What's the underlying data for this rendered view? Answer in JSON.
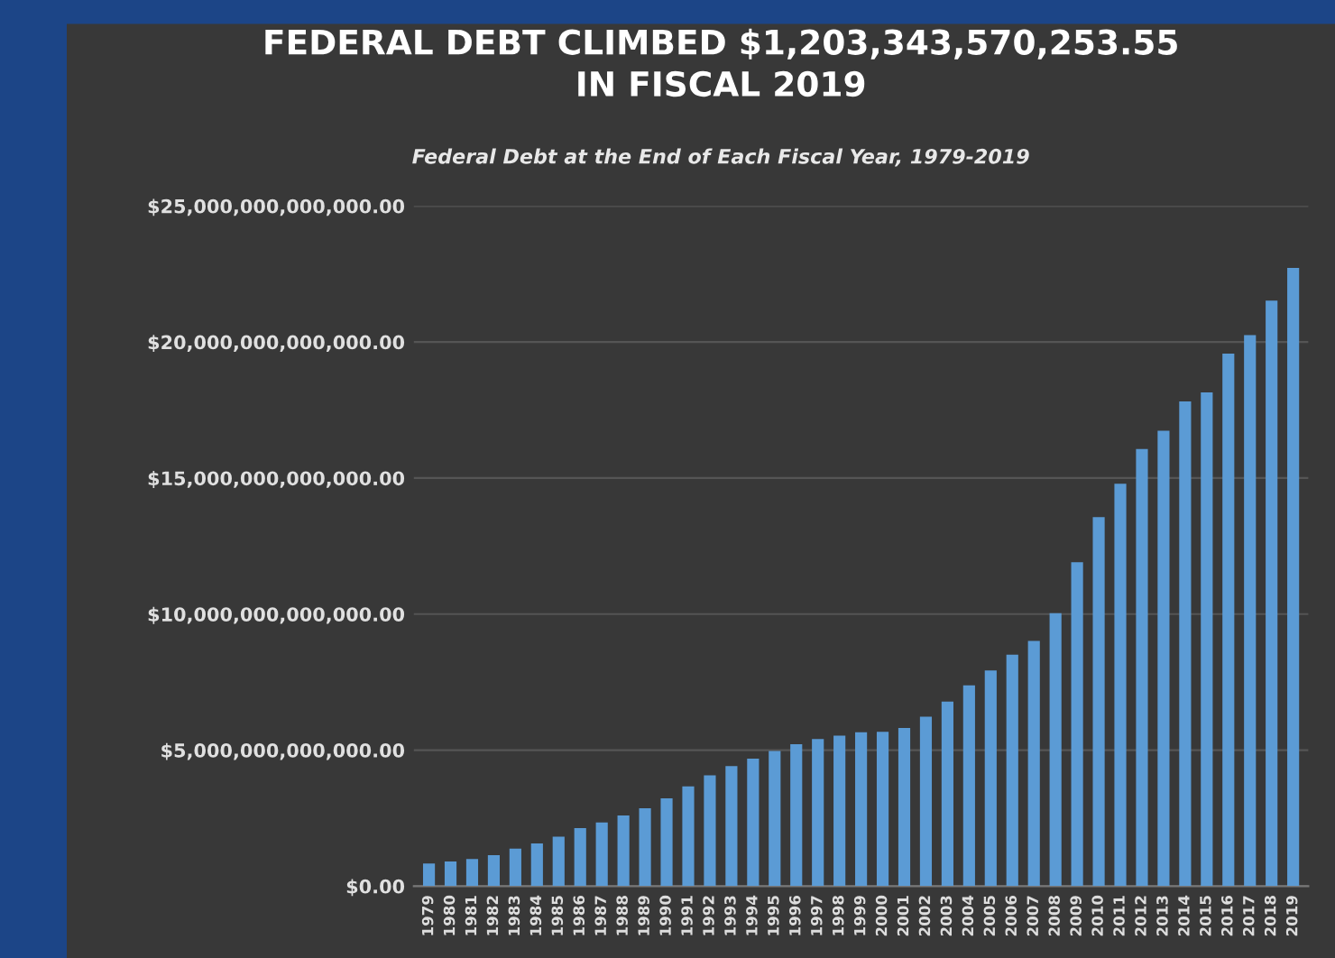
{
  "chart_data": {
    "type": "bar",
    "title": "FEDERAL DEBT CLIMBED $1,203,343,570,253.55\nIN FISCAL 2019",
    "subtitle": "Federal Debt at the End of Each Fiscal Year, 1979-2019",
    "categories": [
      "1979",
      "1980",
      "1981",
      "1982",
      "1983",
      "1984",
      "1985",
      "1986",
      "1987",
      "1988",
      "1989",
      "1990",
      "1991",
      "1992",
      "1993",
      "1994",
      "1995",
      "1996",
      "1997",
      "1998",
      "1999",
      "2000",
      "2001",
      "2002",
      "2003",
      "2004",
      "2005",
      "2006",
      "2007",
      "2008",
      "2009",
      "2010",
      "2011",
      "2012",
      "2013",
      "2014",
      "2015",
      "2016",
      "2017",
      "2018",
      "2019"
    ],
    "values": [
      830000000000,
      910000000000,
      1000000000000,
      1140000000000,
      1380000000000,
      1570000000000,
      1820000000000,
      2130000000000,
      2340000000000,
      2600000000000,
      2860000000000,
      3230000000000,
      3670000000000,
      4070000000000,
      4410000000000,
      4690000000000,
      4970000000000,
      5220000000000,
      5410000000000,
      5530000000000,
      5660000000000,
      5670000000000,
      5810000000000,
      6230000000000,
      6780000000000,
      7380000000000,
      7930000000000,
      8510000000000,
      9010000000000,
      10030000000000,
      11910000000000,
      13560000000000,
      14790000000000,
      16070000000000,
      16740000000000,
      17820000000000,
      18150000000000,
      19570000000000,
      20250000000000,
      21520000000000,
      22720000000000
    ],
    "color": "#5b9bd5",
    "ylim": [
      0,
      25000000000000
    ],
    "yticks": [
      {
        "value": 0,
        "label": "$0.00"
      },
      {
        "value": 5000000000000,
        "label": "$5,000,000,000,000.00"
      },
      {
        "value": 10000000000000,
        "label": "$10,000,000,000,000.00"
      },
      {
        "value": 15000000000000,
        "label": "$15,000,000,000,000.00"
      },
      {
        "value": 20000000000000,
        "label": "$20,000,000,000,000.00"
      },
      {
        "value": 25000000000000,
        "label": "$25,000,000,000,000.00"
      }
    ],
    "grid": "y"
  }
}
